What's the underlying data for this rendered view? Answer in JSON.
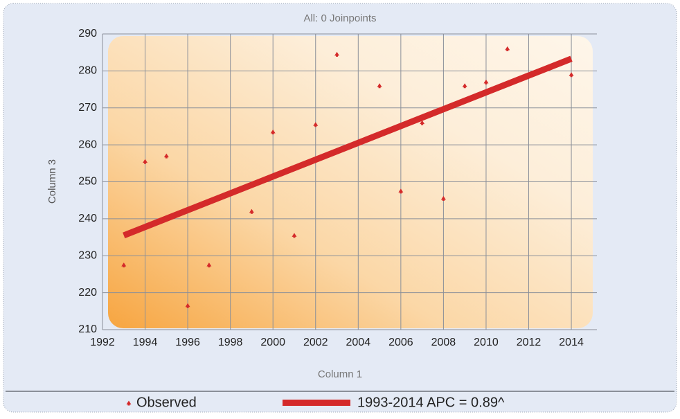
{
  "chart_data": {
    "type": "scatter",
    "title": "All: 0 Joinpoints",
    "x_label": "Column 1",
    "y_label": "Column 3",
    "xlim": [
      1992,
      2015.2
    ],
    "xticks": [
      1992,
      1994,
      1996,
      1998,
      2000,
      2002,
      2004,
      2006,
      2008,
      2010,
      2012,
      2014
    ],
    "ylim": [
      210,
      290
    ],
    "yticks": [
      210,
      220,
      230,
      240,
      250,
      260,
      270,
      280,
      290
    ],
    "grid": true,
    "series": [
      {
        "name": "Observed",
        "type": "scatter",
        "color": "#d42a2a",
        "x": [
          1993,
          1994,
          1995,
          1996,
          1997,
          1999,
          2000,
          2001,
          2002,
          2003,
          2005,
          2006,
          2007,
          2008,
          2009,
          2010,
          2011,
          2014
        ],
        "values": [
          227.5,
          255.5,
          257,
          216.5,
          227.5,
          242,
          263.5,
          235.5,
          265.5,
          284.5,
          276,
          247.5,
          266,
          245.5,
          276,
          277,
          286,
          279
        ]
      },
      {
        "name": "1993-2014 APC = 0.89^",
        "type": "line",
        "color": "#d42a2a",
        "x": [
          1993,
          2014
        ],
        "values": [
          235.5,
          283.3
        ]
      }
    ]
  }
}
